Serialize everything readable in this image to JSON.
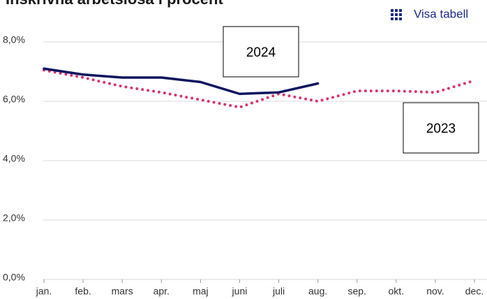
{
  "chart_data": {
    "type": "line",
    "title": "Inskrivna arbetslösa i procent",
    "button": "Visa tabell",
    "categories": [
      "jan.",
      "feb.",
      "mars",
      "apr.",
      "maj",
      "juni",
      "juli",
      "aug.",
      "sep.",
      "okt.",
      "nov.",
      "dec."
    ],
    "series": [
      {
        "name": "2024",
        "color": "#0b1560",
        "style": "solid",
        "values": [
          7.1,
          6.9,
          6.8,
          6.8,
          6.65,
          6.25,
          6.3,
          6.6,
          null,
          null,
          null,
          null
        ]
      },
      {
        "name": "2023",
        "color": "#d6336c",
        "style": "dotted",
        "values": [
          7.05,
          6.8,
          6.5,
          6.3,
          6.05,
          5.8,
          6.25,
          6.0,
          6.35,
          6.35,
          6.3,
          6.7
        ]
      }
    ],
    "ylim": [
      0,
      8
    ],
    "yticks": [
      {
        "value": 0,
        "label": "0,0%"
      },
      {
        "value": 2,
        "label": "2,0%"
      },
      {
        "value": 4,
        "label": "4,0%"
      },
      {
        "value": 6,
        "label": "6,0%"
      },
      {
        "value": 8,
        "label": "8,0%"
      }
    ],
    "grid": true
  }
}
